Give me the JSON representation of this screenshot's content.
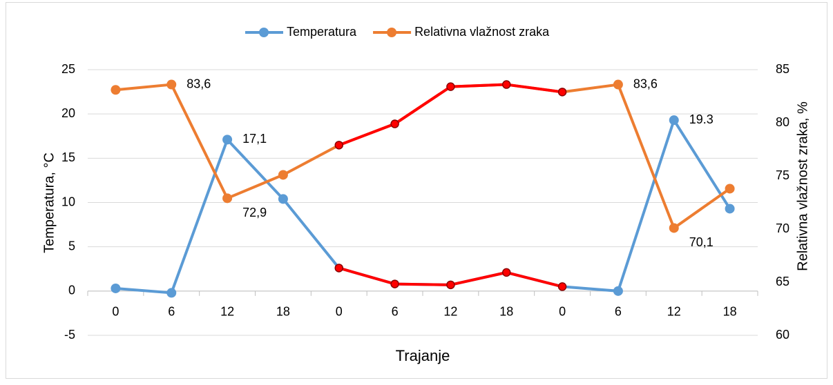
{
  "chart_data": {
    "type": "line",
    "x_label": "Trajanje",
    "y_label": "Temperatura, °C",
    "y2_label": "Relativna vlažnost zraka, %",
    "categories": [
      "0",
      "6",
      "12",
      "18",
      "0",
      "6",
      "12",
      "18",
      "0",
      "6",
      "12",
      "18"
    ],
    "series": [
      {
        "name": "Temperatura",
        "color": "#5b9bd5",
        "axis": "y",
        "values": [
          0.3,
          -0.2,
          17.1,
          10.4,
          2.6,
          0.8,
          0.7,
          2.1,
          0.5,
          0,
          19.3,
          9.3
        ],
        "value_labels": [
          null,
          null,
          "17,1",
          null,
          null,
          null,
          null,
          null,
          null,
          null,
          "19.3",
          null
        ],
        "highlight_color": "#ff0000",
        "highlight_indices": [
          4,
          5,
          6,
          7,
          8
        ]
      },
      {
        "name": "Relativna vlažnost zraka",
        "color": "#ed7d31",
        "axis": "y2",
        "values": [
          83.1,
          83.6,
          72.9,
          75.1,
          77.9,
          79.9,
          83.4,
          83.6,
          82.9,
          83.6,
          70.1,
          73.8
        ],
        "value_labels": [
          null,
          "83,6",
          "72,9",
          null,
          null,
          null,
          null,
          null,
          null,
          "83,6",
          "70,1",
          null
        ],
        "highlight_color": "#ff0000",
        "highlight_indices": [
          4,
          5,
          6,
          7,
          8
        ]
      }
    ],
    "ylim": [
      -5,
      25
    ],
    "yticks": [
      -5,
      0,
      5,
      10,
      15,
      20,
      25
    ],
    "y2lim": [
      60,
      85
    ],
    "y2ticks": [
      60,
      65,
      70,
      75,
      80,
      85
    ],
    "grid": true,
    "legend": "top"
  }
}
